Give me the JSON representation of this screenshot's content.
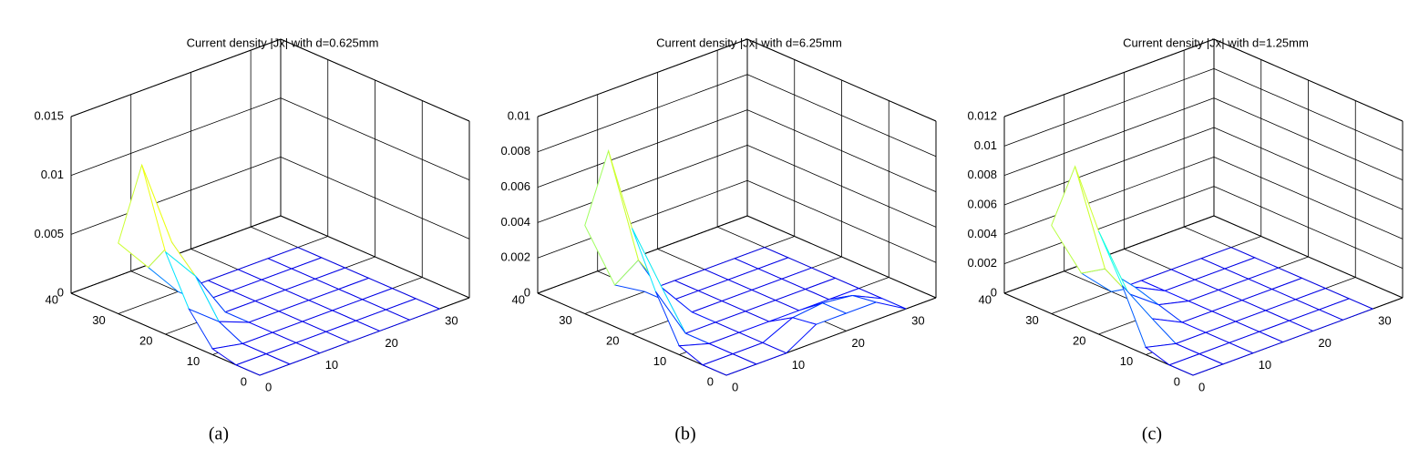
{
  "chart_data": [
    {
      "type": "mesh",
      "title": "Current density |Jx| with d=0.625mm",
      "caption": "(a)",
      "colormap": "jet",
      "grid": true,
      "xlim": [
        0,
        35
      ],
      "ylim": [
        0,
        40
      ],
      "zlim": [
        0,
        0.015
      ],
      "xticks": [
        0,
        10,
        20,
        30
      ],
      "yticks": [
        0,
        10,
        20,
        30,
        40
      ],
      "zticks": [
        0,
        0.005,
        0.01,
        0.015
      ],
      "x": [
        0,
        5,
        10,
        15,
        20,
        25,
        30
      ],
      "y": [
        0,
        5,
        10,
        15,
        20,
        25,
        30
      ],
      "z": [
        [
          0,
          0,
          0,
          0,
          0,
          0,
          0
        ],
        [
          0,
          0,
          0,
          0,
          0,
          0,
          0
        ],
        [
          0.0005,
          0,
          0,
          0,
          0,
          0,
          0
        ],
        [
          0.003,
          0.001,
          0,
          0,
          0,
          0,
          0
        ],
        [
          0.007,
          0.004,
          0,
          0,
          0,
          0,
          0
        ],
        [
          0.0135,
          0.006,
          0,
          0,
          0,
          0,
          0
        ],
        [
          0.006,
          0.003,
          0,
          0,
          0,
          0,
          0
        ]
      ]
    },
    {
      "type": "mesh",
      "title": "Current density |Jx| with d=6.25mm",
      "caption": "(b)",
      "colormap": "jet",
      "grid": true,
      "xlim": [
        0,
        35
      ],
      "ylim": [
        0,
        40
      ],
      "zlim": [
        0,
        0.01
      ],
      "xticks": [
        0,
        10,
        20,
        30
      ],
      "yticks": [
        0,
        10,
        20,
        30,
        40
      ],
      "zticks": [
        0,
        0.002,
        0.004,
        0.006,
        0.008,
        0.01
      ],
      "x": [
        0,
        5,
        10,
        15,
        20,
        25,
        30
      ],
      "y": [
        0,
        5,
        10,
        15,
        20,
        25,
        30
      ],
      "z": [
        [
          0,
          0,
          0,
          0.001,
          0.001,
          0.001,
          0
        ],
        [
          0,
          0,
          0,
          0.0008,
          0.001,
          0.0008,
          0
        ],
        [
          0.0005,
          0,
          0,
          0,
          0,
          0,
          0
        ],
        [
          0.003,
          0,
          0,
          0,
          0,
          0,
          0
        ],
        [
          0.006,
          0.002,
          0,
          0,
          0,
          0,
          0
        ],
        [
          0.0098,
          0.003,
          0,
          0,
          0,
          0,
          0
        ],
        [
          0.005,
          0.001,
          0,
          0,
          0,
          0,
          0
        ]
      ]
    },
    {
      "type": "mesh",
      "title": "Current density |Jx| with d=1.25mm",
      "caption": "(c)",
      "colormap": "jet",
      "grid": true,
      "xlim": [
        0,
        35
      ],
      "ylim": [
        0,
        40
      ],
      "zlim": [
        0,
        0.012
      ],
      "xticks": [
        0,
        10,
        20,
        30
      ],
      "yticks": [
        0,
        10,
        20,
        30,
        40
      ],
      "zticks": [
        0,
        0.002,
        0.004,
        0.006,
        0.008,
        0.01,
        0.012
      ],
      "x": [
        0,
        5,
        10,
        15,
        20,
        25,
        30
      ],
      "y": [
        0,
        5,
        10,
        15,
        20,
        25,
        30
      ],
      "z": [
        [
          0,
          0,
          0,
          0,
          0,
          0,
          0
        ],
        [
          0,
          0,
          0,
          0,
          0,
          0,
          0
        ],
        [
          0.0005,
          0,
          0,
          0,
          0,
          0,
          0
        ],
        [
          0.004,
          0.001,
          0,
          0,
          0,
          0,
          0
        ],
        [
          0.007,
          0.002,
          0.0005,
          0,
          0,
          0,
          0
        ],
        [
          0.0107,
          0.003,
          0.001,
          0,
          0,
          0,
          0
        ],
        [
          0.006,
          0.002,
          0,
          0,
          0,
          0,
          0
        ]
      ]
    }
  ]
}
